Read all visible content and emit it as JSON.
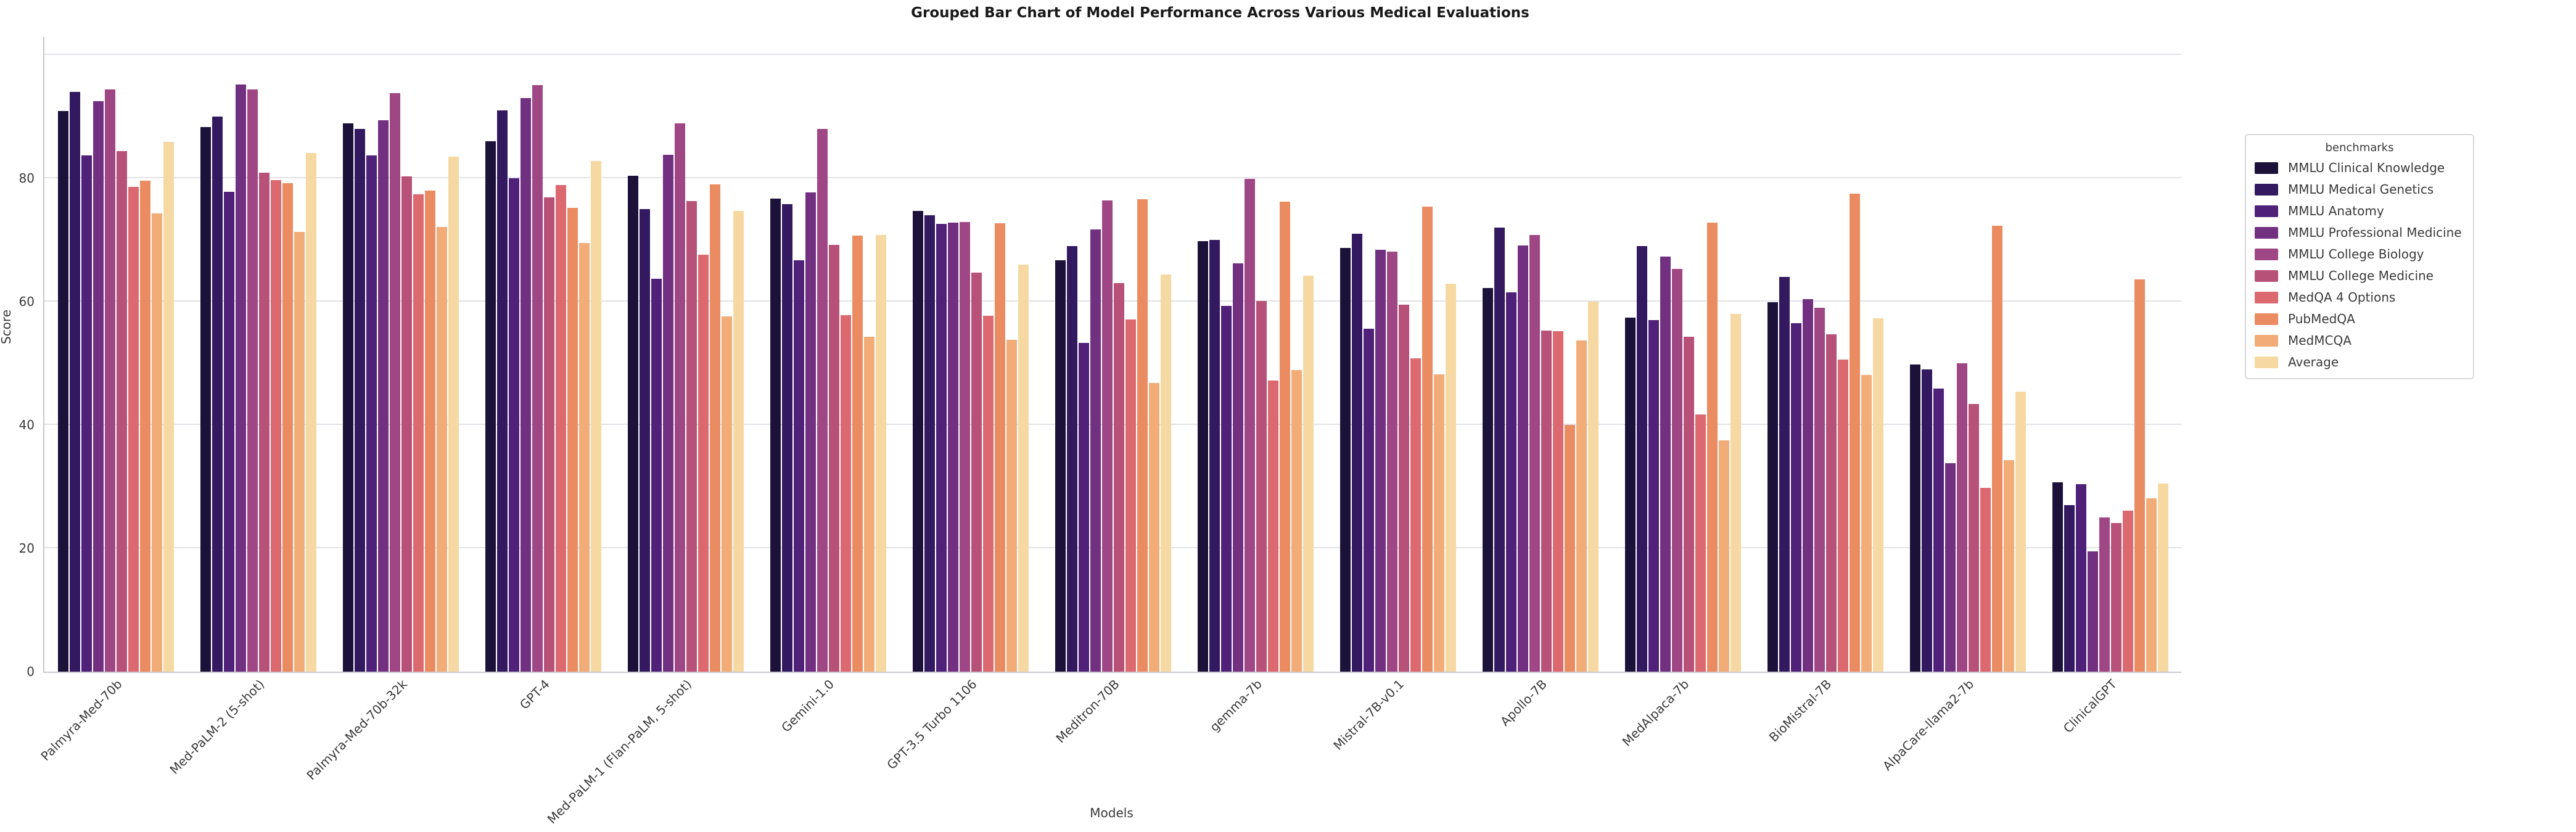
{
  "title": "Grouped Bar Chart of Model Performance Across Various Medical Evaluations",
  "axes": {
    "x_label": "Models",
    "y_label": "Score",
    "y_ticks": [
      0,
      20,
      40,
      60,
      80
    ],
    "gridline_values": [
      20,
      40,
      60,
      80,
      100
    ]
  },
  "legend": {
    "title": "benchmarks"
  },
  "chart_data": {
    "type": "bar",
    "title": "Grouped Bar Chart of Model Performance Across Various Medical Evaluations",
    "xlabel": "Models",
    "ylabel": "Score",
    "ylim": [
      0,
      102.9
    ],
    "grid": "horizontal",
    "legend_position": "right-outside",
    "palette_name": "magma",
    "categories": [
      "Palmyra-Med-70b",
      "Med-PaLM-2 (5-shot)",
      "Palmyra-Med-70b-32k",
      "GPT-4",
      "Med-PaLM-1 (Flan-PaLM, 5-shot)",
      "Gemini-1.0",
      "GPT-3.5 Turbo 1106",
      "Meditron-70B",
      "gemma-7b",
      "Mistral-7B-v0.1",
      "Apollo-7B",
      "MedAlpaca-7b",
      "BioMistral-7B",
      "AlpaCare-llama2-7b",
      "ClinicalGPT"
    ],
    "series": [
      {
        "name": "MMLU Clinical Knowledge",
        "color": "#1b1139",
        "values": [
          90.9,
          88.3,
          88.9,
          86.0,
          80.4,
          76.7,
          74.7,
          66.7,
          69.8,
          68.7,
          62.2,
          57.4,
          59.9,
          49.8,
          30.7
        ]
      },
      {
        "name": "MMLU Medical Genetics",
        "color": "#33195f",
        "values": [
          94.0,
          90.0,
          88.0,
          91.0,
          75.0,
          75.8,
          74.0,
          69.0,
          70.0,
          71.0,
          72.0,
          69.0,
          64.0,
          49.0,
          27.0
        ]
      },
      {
        "name": "MMLU Anatomy",
        "color": "#502179",
        "values": [
          83.7,
          77.8,
          83.7,
          80.0,
          63.7,
          66.7,
          72.6,
          53.3,
          59.3,
          55.6,
          61.5,
          57.0,
          56.5,
          45.9,
          30.4
        ]
      },
      {
        "name": "MMLU Professional Medicine",
        "color": "#723180",
        "values": [
          92.5,
          95.2,
          89.4,
          93.0,
          83.8,
          77.7,
          72.8,
          71.7,
          66.2,
          68.4,
          69.1,
          67.3,
          60.4,
          33.8,
          19.5
        ]
      },
      {
        "name": "MMLU College Biology",
        "color": "#9e4784",
        "values": [
          94.4,
          94.4,
          93.8,
          95.1,
          88.9,
          88.0,
          72.9,
          76.4,
          79.9,
          68.1,
          70.8,
          65.3,
          59.0,
          50.0,
          25.0
        ]
      },
      {
        "name": "MMLU College Medicine",
        "color": "#b85177",
        "values": [
          84.4,
          80.9,
          80.3,
          76.9,
          76.3,
          69.2,
          64.7,
          63.0,
          60.1,
          59.5,
          55.3,
          54.3,
          54.7,
          43.4,
          24.1
        ]
      },
      {
        "name": "MedQA 4 Options",
        "color": "#db696f",
        "values": [
          78.6,
          79.7,
          77.4,
          78.9,
          67.6,
          57.8,
          57.7,
          57.1,
          47.2,
          50.8,
          55.2,
          41.7,
          50.6,
          29.8,
          26.1
        ]
      },
      {
        "name": "PubMedQA",
        "color": "#ea8b62",
        "values": [
          79.6,
          79.2,
          78.0,
          75.2,
          79.0,
          70.7,
          72.7,
          76.6,
          76.2,
          75.4,
          40.0,
          72.8,
          77.5,
          72.3,
          63.6
        ]
      },
      {
        "name": "MedMCQA",
        "color": "#f1ac77",
        "values": [
          74.3,
          71.3,
          72.1,
          69.5,
          57.6,
          54.3,
          53.8,
          46.8,
          48.9,
          48.2,
          53.7,
          37.5,
          48.1,
          34.3,
          28.1
        ]
      },
      {
        "name": "Average",
        "color": "#f6d8a3",
        "values": [
          85.9,
          84.1,
          83.5,
          82.8,
          74.7,
          70.8,
          66.0,
          64.4,
          64.2,
          62.9,
          60.0,
          58.0,
          57.3,
          45.4,
          30.5
        ]
      }
    ]
  }
}
